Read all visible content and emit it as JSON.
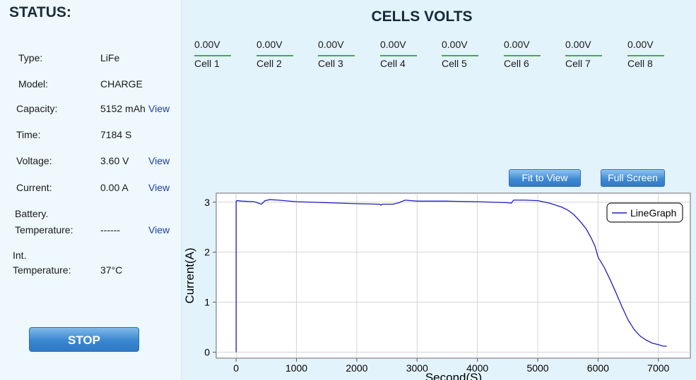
{
  "status": {
    "title": "STATUS:",
    "rows": {
      "type": {
        "label": "Type:",
        "value": "LiFe"
      },
      "model": {
        "label": "Model:",
        "value": "CHARGE"
      },
      "capacity": {
        "label": "Capacity:",
        "value": "5152 mAh",
        "link": "View"
      },
      "time": {
        "label": "Time:",
        "value": "7184 S"
      },
      "voltage": {
        "label": "Voltage:",
        "value": "3.60 V",
        "link": "View"
      },
      "current": {
        "label": "Current:",
        "value": "0.00 A",
        "link": "View"
      },
      "battery_temp": {
        "label_line1": "Battery.",
        "label_line2": "Temperature:",
        "value": "------",
        "link": "View"
      },
      "int_temp": {
        "label_line1": "Int.",
        "label_line2": "Temperature:",
        "value": "37°C"
      }
    },
    "stop_label": "STOP"
  },
  "cells": {
    "title": "CELLS VOLTS",
    "items": [
      {
        "volt": "0.00V",
        "name": "Cell 1"
      },
      {
        "volt": "0.00V",
        "name": "Cell 2"
      },
      {
        "volt": "0.00V",
        "name": "Cell 3"
      },
      {
        "volt": "0.00V",
        "name": "Cell 4"
      },
      {
        "volt": "0.00V",
        "name": "Cell 5"
      },
      {
        "volt": "0.00V",
        "name": "Cell 6"
      },
      {
        "volt": "0.00V",
        "name": "Cell 7"
      },
      {
        "volt": "0.00V",
        "name": "Cell 8"
      }
    ]
  },
  "toolbar": {
    "fit_label": "Fit to View",
    "full_label": "Full Screen"
  },
  "colors": {
    "line": "#1f1fbf",
    "grid": "#d4d4d4",
    "accent": "#3a86d0"
  },
  "chart_data": {
    "type": "line",
    "title": "",
    "xlabel": "Second(S)",
    "ylabel": "Current(A)",
    "xlim": [
      -330,
      7530
    ],
    "ylim": [
      -0.12,
      3.18
    ],
    "xticks": [
      0,
      1000,
      2000,
      3000,
      4000,
      5000,
      6000,
      7000
    ],
    "yticks": [
      0,
      1,
      2,
      3
    ],
    "grid": true,
    "legend": "top-right",
    "series": [
      {
        "name": "LineGraph",
        "x": [
          0,
          0,
          20,
          100,
          300,
          420,
          480,
          560,
          700,
          1000,
          1500,
          2000,
          2380,
          2400,
          2420,
          2600,
          2700,
          2800,
          3000,
          3500,
          4000,
          4500,
          4560,
          4600,
          4800,
          5000,
          5200,
          5400,
          5500,
          5600,
          5700,
          5800,
          5880,
          5950,
          6000,
          6100,
          6200,
          6300,
          6400,
          6500,
          6600,
          6700,
          6800,
          6900,
          7000,
          7080,
          7140
        ],
        "y": [
          0.0,
          3.02,
          3.03,
          3.02,
          3.01,
          2.96,
          3.03,
          3.05,
          3.04,
          3.01,
          2.99,
          2.97,
          2.96,
          2.94,
          2.96,
          2.96,
          2.99,
          3.04,
          3.02,
          3.02,
          3.01,
          2.99,
          2.98,
          3.04,
          3.04,
          3.03,
          2.98,
          2.9,
          2.84,
          2.75,
          2.62,
          2.47,
          2.3,
          2.12,
          1.9,
          1.7,
          1.45,
          1.18,
          0.9,
          0.64,
          0.45,
          0.32,
          0.24,
          0.18,
          0.15,
          0.12,
          0.12
        ]
      }
    ]
  }
}
